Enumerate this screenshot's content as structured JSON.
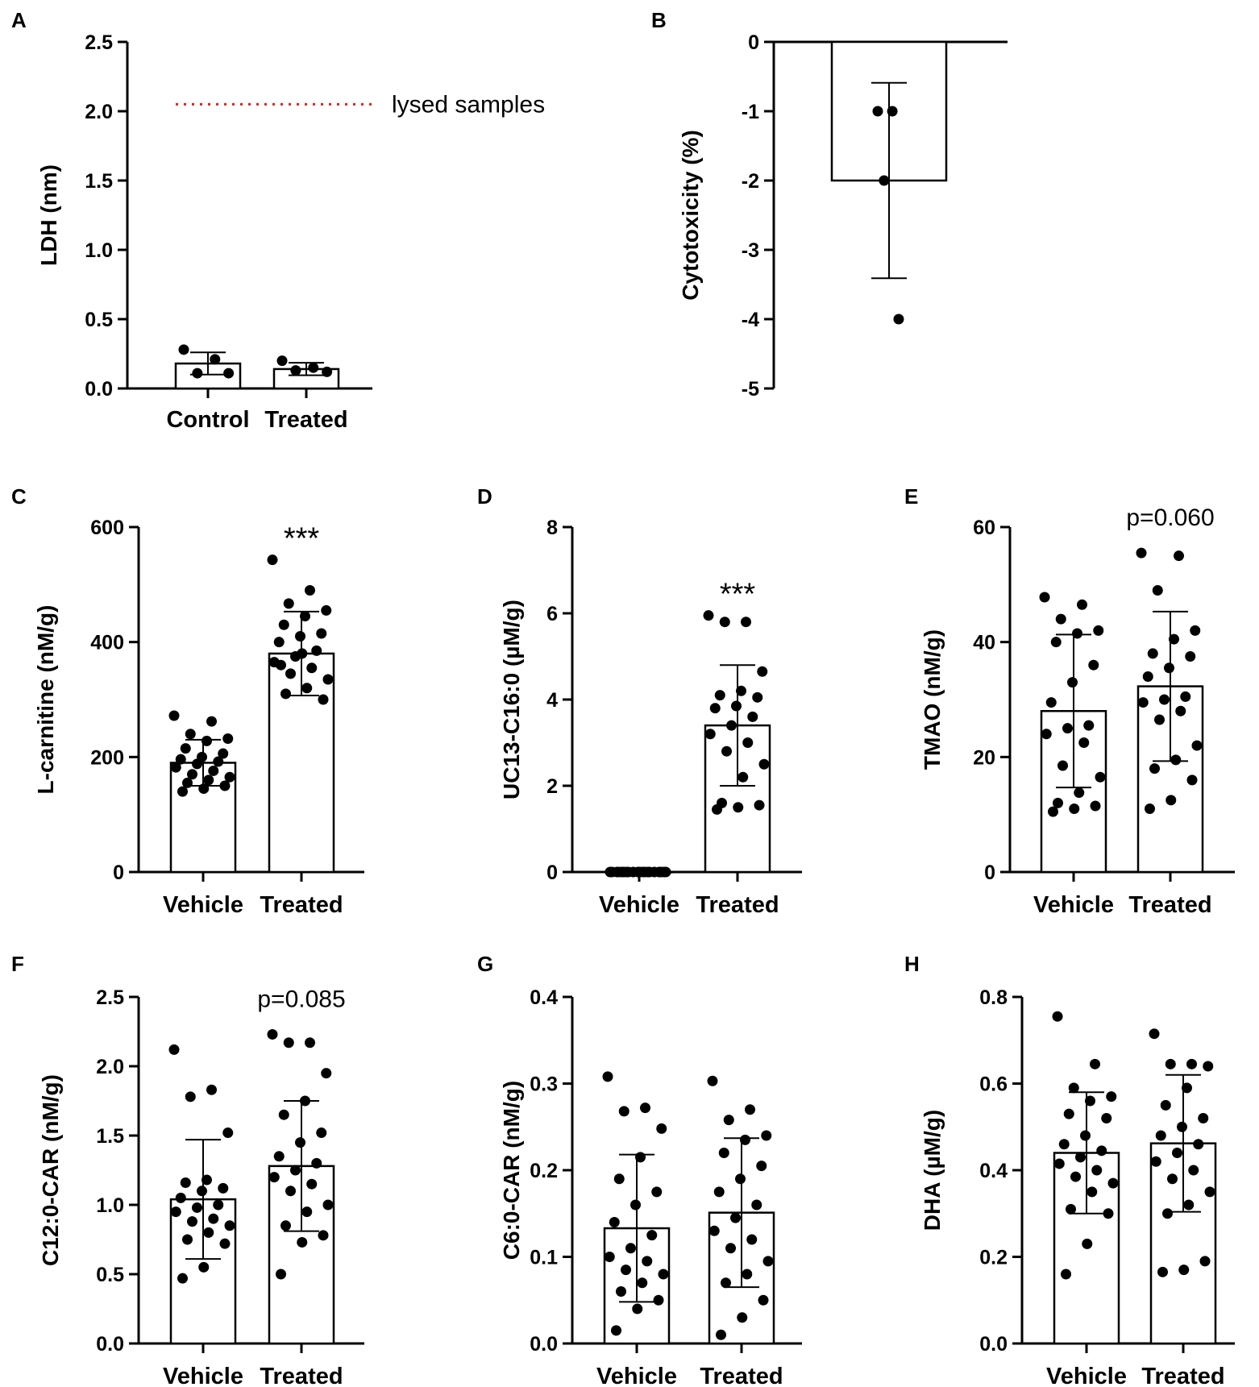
{
  "figure": {
    "colors": {
      "ink": "#000000",
      "bar_fill": "#ffffff",
      "reference_line": "#e0211c"
    }
  },
  "chart_data": [
    {
      "panel": "A",
      "type": "bar",
      "ylabel": "LDH (nm)",
      "categories": [
        "Control",
        "Treated"
      ],
      "ylim": [
        0,
        2.5
      ],
      "ytick_labels": [
        "0.0",
        "0.5",
        "1.0",
        "1.5",
        "2.0",
        "2.5"
      ],
      "baseline": 0,
      "values": [
        0.18,
        0.14
      ],
      "error_sd": [
        0.08,
        0.045
      ],
      "points": [
        [
          0.28,
          0.21,
          0.11,
          0.11
        ],
        [
          0.2,
          0.15,
          0.13,
          0.12
        ]
      ],
      "reference_line": {
        "value": 2.05,
        "label": "lysed samples",
        "color": "#e0211c"
      },
      "annotation": ""
    },
    {
      "panel": "B",
      "type": "bar",
      "ylabel": "Cytotoxicity (%)",
      "categories": [
        ""
      ],
      "ylim": [
        -5,
        0
      ],
      "ytick_labels": [
        "-5",
        "-4",
        "-3",
        "-2",
        "-1",
        "0"
      ],
      "baseline": 0,
      "values": [
        -2
      ],
      "error_sd": [
        1.41
      ],
      "points": [
        [
          -1,
          -1,
          -2,
          -4
        ]
      ],
      "annotation": ""
    },
    {
      "panel": "C",
      "type": "bar",
      "ylabel": "L-carnitine (nM/g)",
      "categories": [
        "Vehicle",
        "Treated"
      ],
      "ylim": [
        0,
        600
      ],
      "ytick_labels": [
        "0",
        "200",
        "400",
        "600"
      ],
      "baseline": 0,
      "values": [
        190,
        380
      ],
      "error_sd": [
        40,
        73
      ],
      "points": [
        [
          272,
          262,
          240,
          232,
          228,
          215,
          206,
          200,
          196,
          192,
          188,
          182,
          176,
          170,
          165,
          160,
          155,
          150,
          145,
          140
        ],
        [
          543,
          490,
          467,
          455,
          445,
          430,
          415,
          410,
          400,
          385,
          375,
          365,
          355,
          345,
          335,
          320,
          310,
          300,
          380,
          360
        ]
      ],
      "annotation": "***"
    },
    {
      "panel": "D",
      "type": "bar",
      "ylabel": "UC13-C16:0 (µM/g)",
      "categories": [
        "Vehicle",
        "Treated"
      ],
      "ylim": [
        0,
        8
      ],
      "ytick_labels": [
        "0",
        "2",
        "4",
        "6",
        "8"
      ],
      "baseline": 0,
      "values": [
        0,
        3.4
      ],
      "error_sd": [
        0,
        1.4
      ],
      "points": [
        [
          0,
          0,
          0,
          0,
          0,
          0,
          0,
          0,
          0,
          0,
          0,
          0,
          0,
          0,
          0,
          0,
          0,
          0,
          0,
          0
        ],
        [
          5.95,
          5.8,
          5.8,
          4.65,
          4.2,
          4.1,
          4.05,
          3.85,
          3.8,
          3.6,
          3.4,
          3.2,
          3.0,
          2.8,
          2.5,
          2.2,
          1.6,
          1.55,
          1.5,
          1.45
        ]
      ],
      "annotation": "***"
    },
    {
      "panel": "E",
      "type": "bar",
      "ylabel": "TMAO (nM/g)",
      "categories": [
        "Vehicle",
        "Treated"
      ],
      "ylim": [
        0,
        60
      ],
      "ytick_labels": [
        "0",
        "20",
        "40",
        "60"
      ],
      "baseline": 0,
      "values": [
        28,
        32.3
      ],
      "error_sd": [
        13.3,
        13
      ],
      "points": [
        [
          47.8,
          46.5,
          44,
          42,
          41.5,
          40,
          36,
          33,
          29.5,
          25.5,
          25,
          24,
          22.5,
          18.5,
          16.5,
          13.8,
          12,
          11.5,
          11,
          10.5
        ],
        [
          55.5,
          55,
          49,
          42,
          40.5,
          38,
          37.5,
          35.5,
          34,
          30.5,
          30,
          29.5,
          28,
          26.5,
          22,
          19.5,
          18,
          16,
          12.5,
          11
        ]
      ],
      "annotation": "p=0.060"
    },
    {
      "panel": "F",
      "type": "bar",
      "ylabel": "C12:0-CAR (nM/g)",
      "categories": [
        "Vehicle",
        "Treated"
      ],
      "ylim": [
        0,
        2.5
      ],
      "ytick_labels": [
        "0.0",
        "0.5",
        "1.0",
        "1.5",
        "2.0",
        "2.5"
      ],
      "baseline": 0,
      "values": [
        1.04,
        1.28
      ],
      "error_sd": [
        0.43,
        0.47
      ],
      "points": [
        [
          2.12,
          1.83,
          1.78,
          1.52,
          1.18,
          1.16,
          1.12,
          1.1,
          1.05,
          1.0,
          0.98,
          0.95,
          0.9,
          0.88,
          0.85,
          0.8,
          0.75,
          0.72,
          0.55,
          0.47
        ],
        [
          2.23,
          2.17,
          2.17,
          1.95,
          1.75,
          1.65,
          1.52,
          1.45,
          1.35,
          1.3,
          1.25,
          1.2,
          1.15,
          1.1,
          1.0,
          0.95,
          0.85,
          0.78,
          0.73,
          0.5
        ]
      ],
      "annotation": "p=0.085"
    },
    {
      "panel": "G",
      "type": "bar",
      "ylabel": "C6:0-CAR (nM/g)",
      "categories": [
        "Vehicle",
        "Treated"
      ],
      "ylim": [
        0,
        0.4
      ],
      "ytick_labels": [
        "0.0",
        "0.1",
        "0.2",
        "0.3",
        "0.4"
      ],
      "baseline": 0,
      "values": [
        0.133,
        0.151
      ],
      "error_sd": [
        0.085,
        0.086
      ],
      "points": [
        [
          0.308,
          0.272,
          0.268,
          0.248,
          0.215,
          0.19,
          0.175,
          0.16,
          0.14,
          0.125,
          0.11,
          0.1,
          0.095,
          0.085,
          0.08,
          0.07,
          0.06,
          0.05,
          0.04,
          0.015
        ],
        [
          0.303,
          0.27,
          0.258,
          0.24,
          0.235,
          0.22,
          0.205,
          0.19,
          0.175,
          0.16,
          0.145,
          0.13,
          0.12,
          0.11,
          0.095,
          0.08,
          0.07,
          0.05,
          0.03,
          0.01
        ]
      ],
      "annotation": ""
    },
    {
      "panel": "H",
      "type": "bar",
      "ylabel": "DHA (µM/g)",
      "categories": [
        "Vehicle",
        "Treated"
      ],
      "ylim": [
        0,
        0.8
      ],
      "ytick_labels": [
        "0.0",
        "0.2",
        "0.4",
        "0.6",
        "0.8"
      ],
      "baseline": 0,
      "values": [
        0.44,
        0.462
      ],
      "error_sd": [
        0.14,
        0.158
      ],
      "points": [
        [
          0.755,
          0.645,
          0.59,
          0.57,
          0.56,
          0.53,
          0.52,
          0.48,
          0.46,
          0.445,
          0.43,
          0.415,
          0.4,
          0.385,
          0.37,
          0.35,
          0.31,
          0.3,
          0.23,
          0.16
        ],
        [
          0.715,
          0.645,
          0.645,
          0.64,
          0.59,
          0.55,
          0.52,
          0.5,
          0.48,
          0.46,
          0.44,
          0.42,
          0.4,
          0.38,
          0.35,
          0.32,
          0.3,
          0.19,
          0.17,
          0.165
        ]
      ],
      "annotation": ""
    }
  ]
}
